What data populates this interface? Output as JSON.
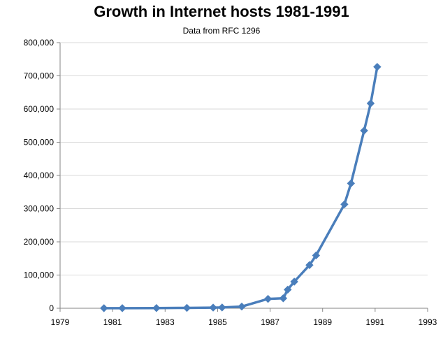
{
  "chart_data": {
    "type": "line",
    "title": "Growth in Internet hosts 1981-1991",
    "subtitle": "Data from RFC 1296",
    "xlabel": "",
    "ylabel": "",
    "xlim": [
      1979,
      1993
    ],
    "ylim": [
      0,
      800000
    ],
    "x_ticks": [
      "1979",
      "1981",
      "1983",
      "1985",
      "1987",
      "1989",
      "1991",
      "1993"
    ],
    "y_ticks": [
      "0",
      "100,000",
      "200,000",
      "300,000",
      "400,000",
      "500,000",
      "600,000",
      "700,000",
      "800,000"
    ],
    "grid": true,
    "legend": "none",
    "colors": {
      "series": "#4a7ebb",
      "grid": "#d9d9d9",
      "axis": "#868686",
      "text": "#000000"
    },
    "series": [
      {
        "marker": "diamond",
        "points": [
          [
            1980.67,
            213
          ],
          [
            1981.37,
            235
          ],
          [
            1982.67,
            562
          ],
          [
            1983.83,
            1024
          ],
          [
            1984.83,
            1961
          ],
          [
            1985.17,
            2308
          ],
          [
            1985.92,
            5089
          ],
          [
            1986.92,
            28174
          ],
          [
            1987.5,
            30000
          ],
          [
            1987.67,
            56000
          ],
          [
            1987.92,
            80000
          ],
          [
            1988.5,
            130000
          ],
          [
            1988.75,
            159000
          ],
          [
            1989.83,
            313000
          ],
          [
            1990.08,
            376000
          ],
          [
            1990.58,
            535000
          ],
          [
            1990.83,
            617000
          ],
          [
            1991.08,
            727000
          ]
        ]
      }
    ]
  }
}
